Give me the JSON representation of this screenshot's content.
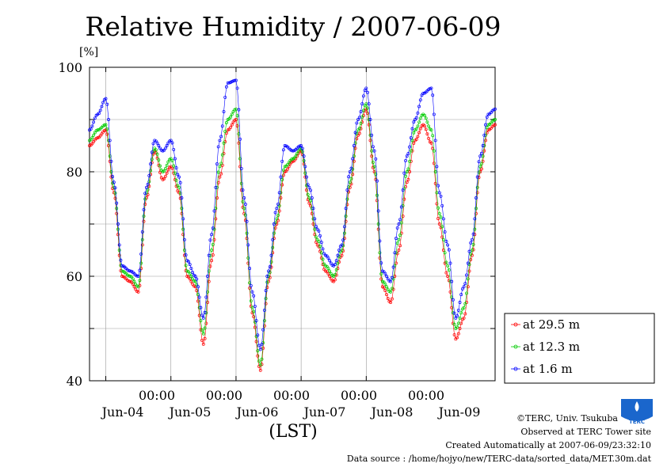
{
  "chart_data": {
    "type": "line",
    "title": "Relative Humidity / 2007-06-09",
    "ylabel": "[%]",
    "xlabel": "(LST)",
    "ylim": [
      40,
      100
    ],
    "y_ticks": [
      "100",
      "80",
      "60",
      "40"
    ],
    "xlim": [
      "2007-06-03 18:00",
      "2007-06-09 23:30"
    ],
    "x_tick_time_label": "00:00",
    "x_tick_times": [
      "2007-06-04 00:00",
      "2007-06-05 00:00",
      "2007-06-06 00:00",
      "2007-06-07 00:00",
      "2007-06-08 00:00"
    ],
    "x_day_labels": [
      "Jun-04",
      "Jun-05",
      "Jun-06",
      "Jun-07",
      "Jun-08",
      "Jun-09"
    ],
    "x_day_positions": [
      "2007-06-04 12:00",
      "2007-06-05 12:00",
      "2007-06-06 12:00",
      "2007-06-07 12:00",
      "2007-06-08 12:00",
      "2007-06-09 12:00"
    ],
    "grid": true,
    "legend_position": "lower-right, outside plot",
    "series": [
      {
        "name": "at 29.5 m",
        "color": "#ff0000",
        "marker": "open-circle",
        "time": [
          "06-03 18:00",
          "06-03 21:00",
          "06-04 00:00",
          "06-04 03:00",
          "06-04 06:00",
          "06-04 09:00",
          "06-04 12:00",
          "06-04 15:00",
          "06-04 18:00",
          "06-04 21:00",
          "06-05 00:00",
          "06-05 03:00",
          "06-05 06:00",
          "06-05 09:00",
          "06-05 12:00",
          "06-05 15:00",
          "06-05 18:00",
          "06-05 21:00",
          "06-06 00:00",
          "06-06 03:00",
          "06-06 06:00",
          "06-06 09:00",
          "06-06 12:00",
          "06-06 15:00",
          "06-06 18:00",
          "06-06 21:00",
          "06-07 00:00",
          "06-07 03:00",
          "06-07 06:00",
          "06-07 09:00",
          "06-07 12:00",
          "06-07 15:00",
          "06-07 18:00",
          "06-07 21:00",
          "06-08 00:00",
          "06-08 03:00",
          "06-08 06:00",
          "06-08 09:00",
          "06-08 12:00",
          "06-08 15:00",
          "06-08 18:00",
          "06-08 21:00",
          "06-09 00:00",
          "06-09 03:00",
          "06-09 06:00",
          "06-09 09:00",
          "06-09 12:00",
          "06-09 15:00",
          "06-09 18:00",
          "06-09 21:00",
          "06-09 23:30"
        ],
        "values": [
          85,
          86.5,
          88,
          76,
          60,
          59,
          57,
          75,
          84,
          78.5,
          81,
          76,
          60,
          58,
          47,
          63,
          79,
          88,
          90,
          72,
          53,
          42,
          59,
          70,
          80,
          82,
          84,
          74,
          66,
          61,
          59,
          64,
          77,
          87,
          92,
          80,
          58,
          55,
          65,
          78,
          86,
          89,
          85.5,
          70,
          60,
          48,
          52,
          64,
          80,
          88,
          89
        ]
      },
      {
        "name": "at 12.3 m",
        "color": "#00cc00",
        "marker": "open-circle",
        "time": [
          "06-03 18:00",
          "06-03 21:00",
          "06-04 00:00",
          "06-04 03:00",
          "06-04 06:00",
          "06-04 09:00",
          "06-04 12:00",
          "06-04 15:00",
          "06-04 18:00",
          "06-04 21:00",
          "06-05 00:00",
          "06-05 03:00",
          "06-05 06:00",
          "06-05 09:00",
          "06-05 12:00",
          "06-05 15:00",
          "06-05 18:00",
          "06-05 21:00",
          "06-06 00:00",
          "06-06 03:00",
          "06-06 06:00",
          "06-06 09:00",
          "06-06 12:00",
          "06-06 15:00",
          "06-06 18:00",
          "06-06 21:00",
          "06-07 00:00",
          "06-07 03:00",
          "06-07 06:00",
          "06-07 09:00",
          "06-07 12:00",
          "06-07 15:00",
          "06-07 18:00",
          "06-07 21:00",
          "06-08 00:00",
          "06-08 03:00",
          "06-08 06:00",
          "06-08 09:00",
          "06-08 12:00",
          "06-08 15:00",
          "06-08 18:00",
          "06-08 21:00",
          "06-09 00:00",
          "06-09 03:00",
          "06-09 06:00",
          "06-09 09:00",
          "06-09 12:00",
          "06-09 15:00",
          "06-09 18:00",
          "06-09 21:00",
          "06-09 23:30"
        ],
        "values": [
          86,
          88,
          89,
          77,
          61,
          60,
          58,
          76,
          84.5,
          80,
          82.5,
          77,
          61,
          59,
          49,
          65,
          81,
          90,
          92,
          73,
          54,
          43,
          60,
          71,
          81,
          82.5,
          84.5,
          75,
          67,
          62,
          60,
          65,
          78,
          88,
          93,
          81,
          59,
          57,
          67,
          80,
          88,
          91,
          88,
          72,
          62,
          50,
          54,
          65,
          81,
          89,
          90
        ]
      },
      {
        "name": "at 1.6 m",
        "color": "#0000ff",
        "marker": "open-circle",
        "time": [
          "06-03 18:00",
          "06-03 21:00",
          "06-04 00:00",
          "06-04 03:00",
          "06-04 06:00",
          "06-04 09:00",
          "06-04 12:00",
          "06-04 15:00",
          "06-04 18:00",
          "06-04 21:00",
          "06-05 00:00",
          "06-05 03:00",
          "06-05 06:00",
          "06-05 09:00",
          "06-05 12:00",
          "06-05 15:00",
          "06-05 18:00",
          "06-05 21:00",
          "06-06 00:00",
          "06-06 03:00",
          "06-06 06:00",
          "06-06 09:00",
          "06-06 12:00",
          "06-06 15:00",
          "06-06 18:00",
          "06-06 21:00",
          "06-07 00:00",
          "06-07 03:00",
          "06-07 06:00",
          "06-07 09:00",
          "06-07 12:00",
          "06-07 15:00",
          "06-07 18:00",
          "06-07 21:00",
          "06-08 00:00",
          "06-08 03:00",
          "06-08 06:00",
          "06-08 09:00",
          "06-08 12:00",
          "06-08 15:00",
          "06-08 18:00",
          "06-08 21:00",
          "06-09 00:00",
          "06-09 03:00",
          "06-09 06:00",
          "06-09 09:00",
          "06-09 12:00",
          "06-09 15:00",
          "06-09 18:00",
          "06-09 21:00",
          "06-09 23:30"
        ],
        "values": [
          88,
          91,
          94,
          78,
          62,
          61,
          60,
          77,
          86,
          84,
          86,
          79,
          63,
          60,
          52,
          68,
          86,
          97,
          97.5,
          75,
          57,
          46,
          61,
          73,
          85,
          84,
          85,
          77,
          69,
          64,
          62,
          66,
          80,
          90,
          96,
          84,
          61,
          59,
          70,
          83,
          90,
          95,
          96,
          76,
          66,
          52,
          58,
          67,
          83,
          91,
          92
        ]
      }
    ]
  },
  "credits": {
    "copyright": "©TERC, Univ. Tsukuba",
    "site": "Observed at TERC Tower site",
    "created": "Created Automatically at 2007-06-09/23:32:10",
    "source": "Data source : /home/hojyo/new/TERC-data/sorted_data/MET.30m.dat"
  },
  "logo": {
    "text": "TERC",
    "color": "#1a66cc"
  }
}
